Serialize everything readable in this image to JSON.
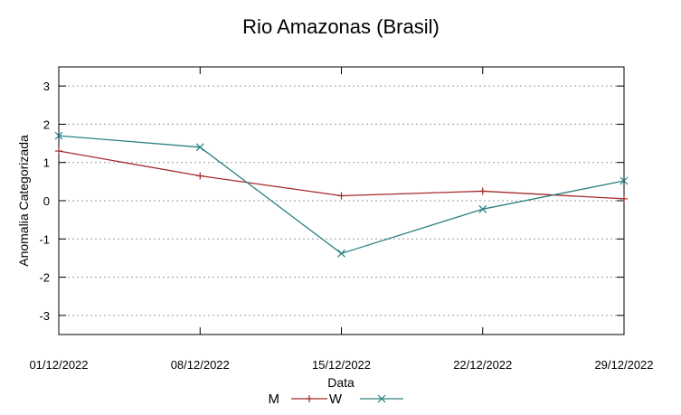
{
  "chart_data": {
    "type": "line",
    "title": "Rio Amazonas (Brasil)",
    "xlabel": "Data",
    "ylabel": "Anomalia Categorizada",
    "categories": [
      "01/12/2022",
      "08/12/2022",
      "15/12/2022",
      "22/12/2022",
      "29/12/2022"
    ],
    "ylim": [
      -3.5,
      3.5
    ],
    "yticks": [
      "3",
      "2",
      "1",
      "0",
      "-1",
      "-2",
      "-3"
    ],
    "grid": "horizontal-dotted",
    "legend_position": "bottom-center",
    "series": [
      {
        "name": "M",
        "color": "#a52a2a",
        "marker": "plus",
        "values": [
          1.3,
          0.65,
          0.13,
          0.25,
          0.05
        ]
      },
      {
        "name": "W",
        "color": "#2a8080",
        "marker": "x",
        "values": [
          1.7,
          1.4,
          -1.38,
          -0.22,
          0.52
        ]
      }
    ]
  }
}
